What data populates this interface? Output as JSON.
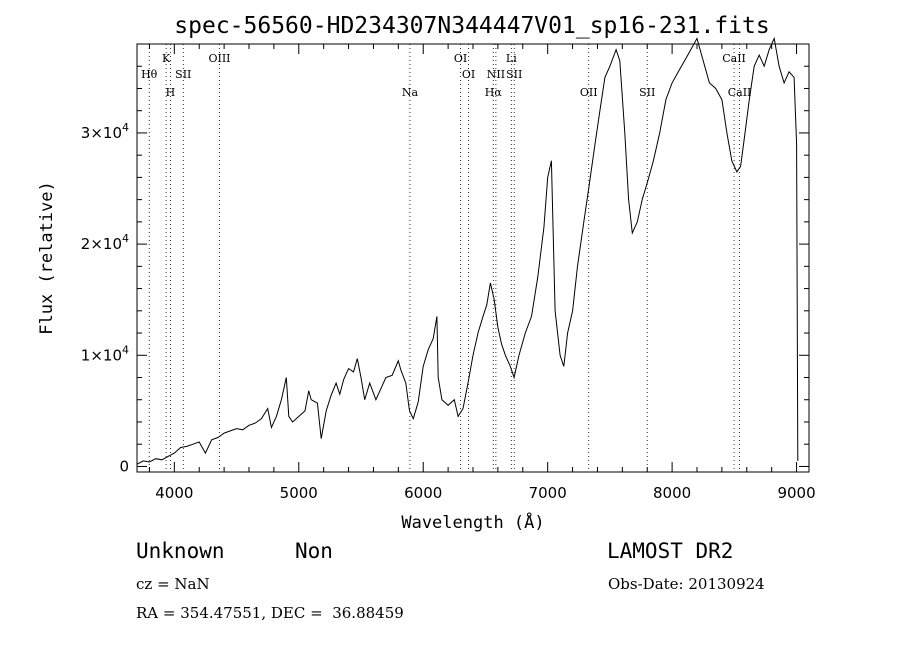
{
  "info": {
    "class": "Unknown",
    "subclass": "Non",
    "cz": "cz = NaN",
    "radec": "RA = 354.47551, DEC =  36.88459",
    "survey": "LAMOST DR2",
    "obsdate": "Obs-Date: 20130924"
  },
  "chart_data": {
    "type": "line",
    "title": "spec-56560-HD234307N344447V01_sp16-231.fits",
    "xlabel": "Wavelength (Å)",
    "ylabel": "Flux (relative)",
    "xlim": [
      3700,
      9100
    ],
    "ylim": [
      -500,
      38000
    ],
    "x_ticks": [
      {
        "value": 4000,
        "label": "4000"
      },
      {
        "value": 5000,
        "label": "5000"
      },
      {
        "value": 6000,
        "label": "6000"
      },
      {
        "value": 7000,
        "label": "7000"
      },
      {
        "value": 8000,
        "label": "8000"
      },
      {
        "value": 9000,
        "label": "9000"
      }
    ],
    "y_ticks": [
      {
        "value": 0,
        "mantissa": "0",
        "exponent": ""
      },
      {
        "value": 10000,
        "mantissa": "1×10",
        "exponent": "4"
      },
      {
        "value": 20000,
        "mantissa": "2×10",
        "exponent": "4"
      },
      {
        "value": 30000,
        "mantissa": "3×10",
        "exponent": "4"
      }
    ],
    "spectral_lines": [
      {
        "name": "Hθ",
        "wavelength": 3798,
        "row": 2
      },
      {
        "name": "K",
        "wavelength": 3934,
        "row": 1
      },
      {
        "name": "H",
        "wavelength": 3969,
        "row": 3
      },
      {
        "name": "SII",
        "wavelength": 4072,
        "row": 2
      },
      {
        "name": "OIII",
        "wavelength": 4363,
        "row": 1
      },
      {
        "name": "Na",
        "wavelength": 5893,
        "row": 3
      },
      {
        "name": "OI",
        "wavelength": 6300,
        "row": 1
      },
      {
        "name": "OI",
        "wavelength": 6364,
        "row": 2
      },
      {
        "name": "Hα",
        "wavelength": 6563,
        "row": 3
      },
      {
        "name": "NII",
        "wavelength": 6584,
        "row": 2
      },
      {
        "name": "Li",
        "wavelength": 6708,
        "row": 1
      },
      {
        "name": "SII",
        "wavelength": 6731,
        "row": 2
      },
      {
        "name": "OII",
        "wavelength": 7330,
        "row": 3
      },
      {
        "name": "SII",
        "wavelength": 7800,
        "row": 3
      },
      {
        "name": "CaII",
        "wavelength": 8498,
        "row": 1
      },
      {
        "name": "CaII",
        "wavelength": 8542,
        "row": 3
      }
    ],
    "series": [
      {
        "points": [
          [
            3700,
            200
          ],
          [
            3750,
            500
          ],
          [
            3800,
            400
          ],
          [
            3850,
            700
          ],
          [
            3900,
            600
          ],
          [
            3950,
            900
          ],
          [
            4000,
            1200
          ],
          [
            4050,
            1700
          ],
          [
            4100,
            1800
          ],
          [
            4150,
            2000
          ],
          [
            4200,
            2200
          ],
          [
            4250,
            1200
          ],
          [
            4300,
            2400
          ],
          [
            4350,
            2600
          ],
          [
            4400,
            3000
          ],
          [
            4450,
            3200
          ],
          [
            4500,
            3400
          ],
          [
            4550,
            3300
          ],
          [
            4600,
            3700
          ],
          [
            4650,
            3900
          ],
          [
            4700,
            4300
          ],
          [
            4750,
            5200
          ],
          [
            4780,
            3500
          ],
          [
            4820,
            4500
          ],
          [
            4860,
            6000
          ],
          [
            4900,
            8000
          ],
          [
            4920,
            4500
          ],
          [
            4950,
            4000
          ],
          [
            5000,
            4500
          ],
          [
            5050,
            5000
          ],
          [
            5080,
            6800
          ],
          [
            5100,
            6000
          ],
          [
            5150,
            5700
          ],
          [
            5180,
            2500
          ],
          [
            5220,
            5000
          ],
          [
            5260,
            6400
          ],
          [
            5300,
            7500
          ],
          [
            5330,
            6500
          ],
          [
            5360,
            7800
          ],
          [
            5400,
            8800
          ],
          [
            5440,
            8500
          ],
          [
            5470,
            9700
          ],
          [
            5500,
            8000
          ],
          [
            5530,
            6000
          ],
          [
            5570,
            7500
          ],
          [
            5620,
            6000
          ],
          [
            5660,
            7000
          ],
          [
            5700,
            8000
          ],
          [
            5750,
            8200
          ],
          [
            5800,
            9500
          ],
          [
            5820,
            8700
          ],
          [
            5860,
            7500
          ],
          [
            5890,
            5000
          ],
          [
            5920,
            4300
          ],
          [
            5960,
            5800
          ],
          [
            6000,
            9000
          ],
          [
            6040,
            10500
          ],
          [
            6080,
            11500
          ],
          [
            6110,
            13500
          ],
          [
            6120,
            8000
          ],
          [
            6150,
            6000
          ],
          [
            6200,
            5500
          ],
          [
            6250,
            6000
          ],
          [
            6280,
            4500
          ],
          [
            6320,
            5200
          ],
          [
            6360,
            7500
          ],
          [
            6400,
            10000
          ],
          [
            6440,
            12000
          ],
          [
            6480,
            13500
          ],
          [
            6510,
            14500
          ],
          [
            6540,
            16500
          ],
          [
            6570,
            15000
          ],
          [
            6600,
            12500
          ],
          [
            6630,
            11000
          ],
          [
            6660,
            10000
          ],
          [
            6700,
            9000
          ],
          [
            6730,
            8000
          ],
          [
            6770,
            10000
          ],
          [
            6820,
            12000
          ],
          [
            6870,
            13500
          ],
          [
            6920,
            17000
          ],
          [
            6970,
            21500
          ],
          [
            7000,
            26000
          ],
          [
            7030,
            27500
          ],
          [
            7060,
            14000
          ],
          [
            7100,
            10000
          ],
          [
            7130,
            9000
          ],
          [
            7160,
            12000
          ],
          [
            7200,
            14000
          ],
          [
            7240,
            18000
          ],
          [
            7290,
            22000
          ],
          [
            7330,
            25000
          ],
          [
            7380,
            29000
          ],
          [
            7420,
            32000
          ],
          [
            7460,
            35000
          ],
          [
            7500,
            36000
          ],
          [
            7550,
            37500
          ],
          [
            7580,
            36500
          ],
          [
            7620,
            30000
          ],
          [
            7650,
            24000
          ],
          [
            7680,
            21000
          ],
          [
            7720,
            22000
          ],
          [
            7760,
            24000
          ],
          [
            7800,
            25500
          ],
          [
            7850,
            27500
          ],
          [
            7900,
            30000
          ],
          [
            7950,
            33000
          ],
          [
            8000,
            34500
          ],
          [
            8050,
            35500
          ],
          [
            8100,
            36500
          ],
          [
            8150,
            37500
          ],
          [
            8200,
            38500
          ],
          [
            8250,
            36500
          ],
          [
            8300,
            34500
          ],
          [
            8350,
            34000
          ],
          [
            8400,
            33000
          ],
          [
            8440,
            30000
          ],
          [
            8480,
            27500
          ],
          [
            8520,
            26500
          ],
          [
            8550,
            27000
          ],
          [
            8580,
            29500
          ],
          [
            8620,
            33000
          ],
          [
            8660,
            36000
          ],
          [
            8700,
            37000
          ],
          [
            8740,
            36000
          ],
          [
            8780,
            37500
          ],
          [
            8820,
            38500
          ],
          [
            8860,
            36000
          ],
          [
            8900,
            34500
          ],
          [
            8940,
            35500
          ],
          [
            8980,
            35000
          ],
          [
            9000,
            29000
          ],
          [
            9010,
            500
          ]
        ]
      }
    ]
  }
}
